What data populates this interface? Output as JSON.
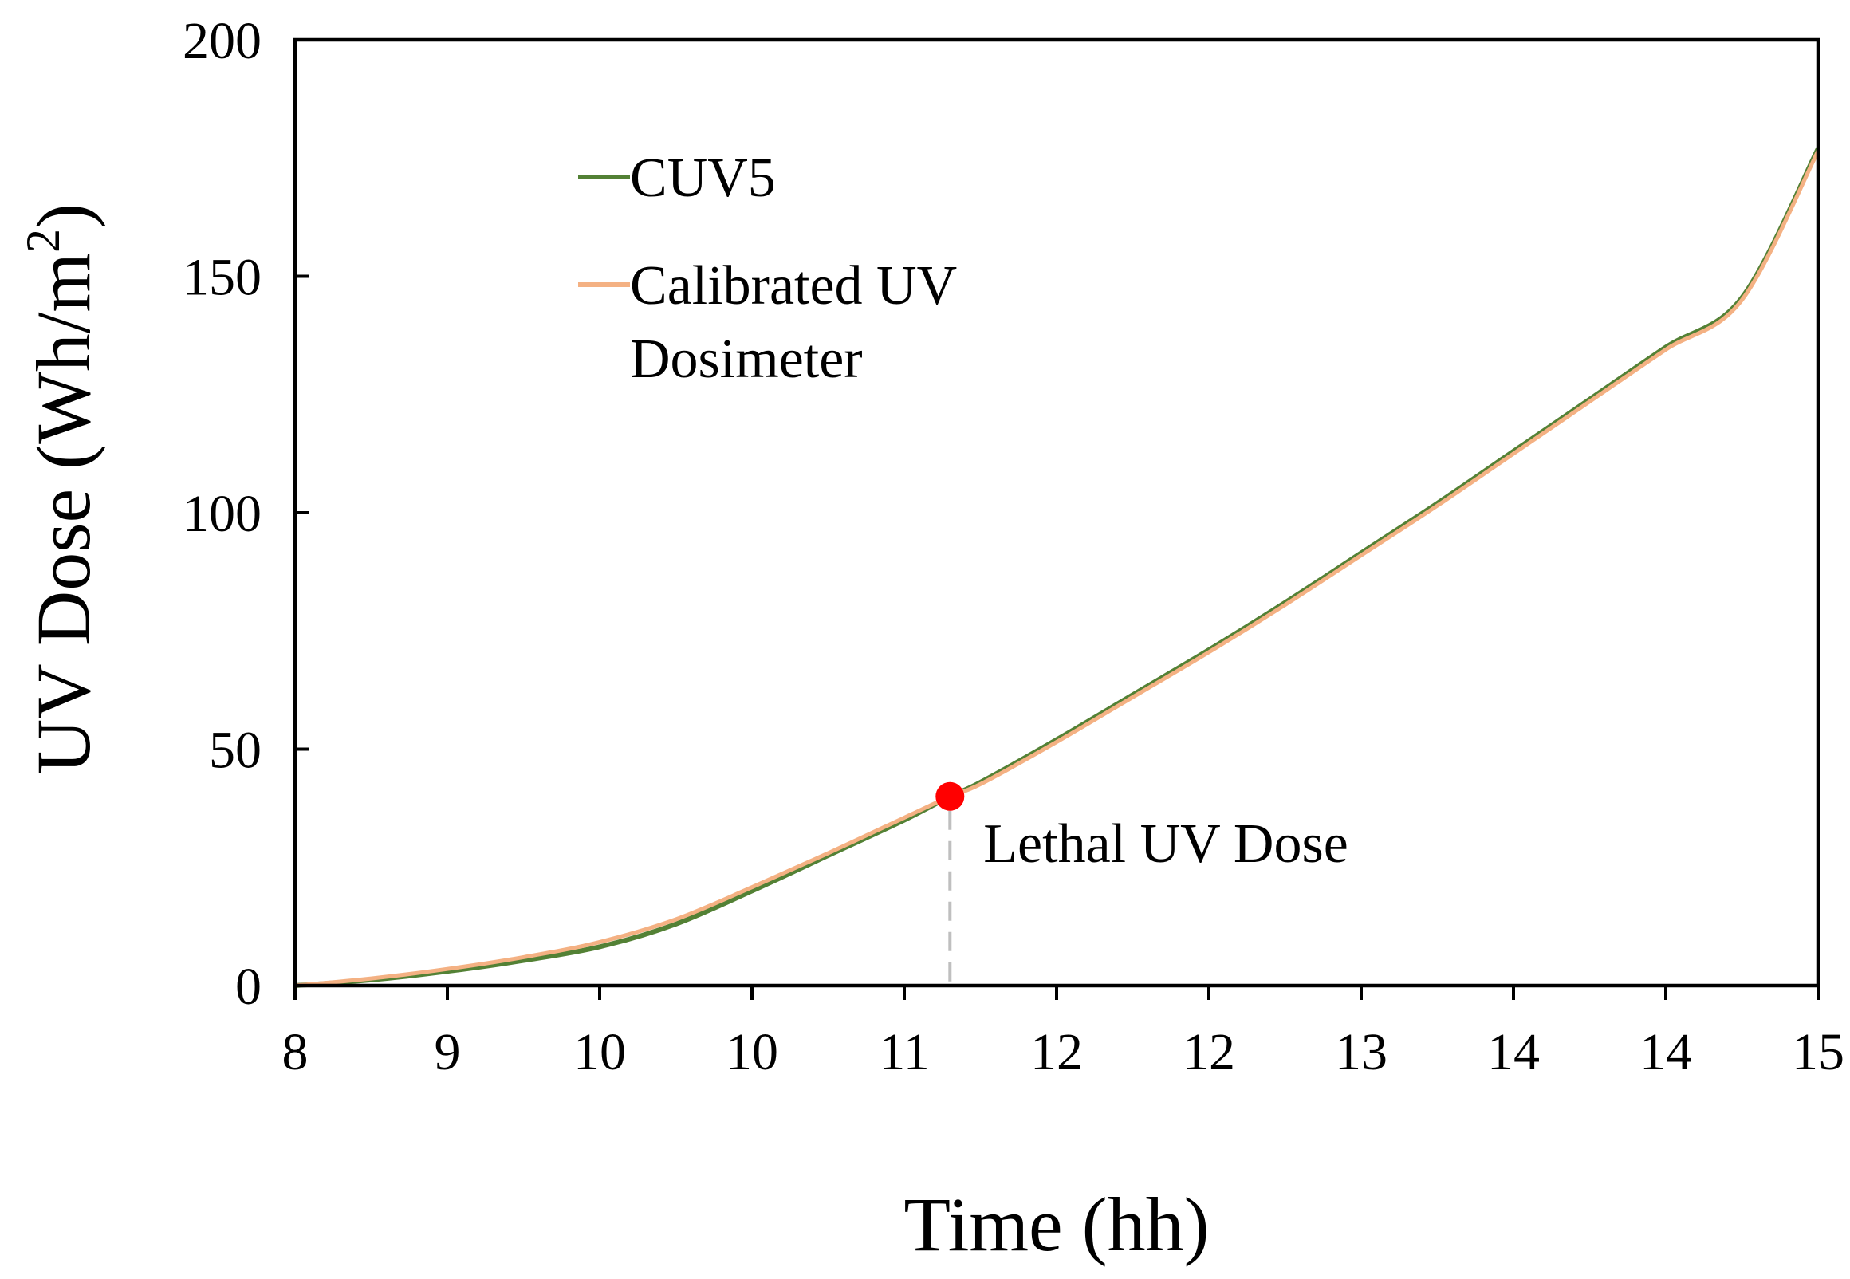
{
  "chart_data": {
    "type": "line",
    "title": "",
    "xlabel": "Time (hh)",
    "ylabel": "UV Dose (Wh/m",
    "ylabel_superscript": "2",
    "ylabel_close": ")",
    "xlim": [
      0,
      10
    ],
    "ylim": [
      0,
      200
    ],
    "x_ticks": [
      0,
      1,
      2,
      3,
      4,
      5,
      6,
      7,
      8,
      9,
      10
    ],
    "x_tick_labels": [
      "8",
      "9",
      "10",
      "10",
      "11",
      "12",
      "12",
      "13",
      "14",
      "14",
      "15"
    ],
    "y_ticks": [
      0,
      50,
      100,
      150,
      200
    ],
    "y_tick_labels": [
      "0",
      "50",
      "100",
      "150",
      "200"
    ],
    "grid": false,
    "legend_position": "top-left",
    "series": [
      {
        "name": "CUV5",
        "color": "#538135",
        "x": [
          0,
          0.5,
          1,
          1.5,
          2,
          2.5,
          3,
          3.5,
          4,
          4.3,
          4.5,
          5,
          5.5,
          6,
          6.5,
          7,
          7.5,
          8,
          8.5,
          9,
          9.5,
          10
        ],
        "y": [
          0,
          1.2,
          3,
          5.3,
          8.2,
          13,
          20,
          27.5,
          35,
          40,
          43,
          52,
          61.5,
          71,
          81,
          91.5,
          102,
          113,
          124,
          135,
          145.5,
          177
        ]
      },
      {
        "name": "Calibrated UV Dosimeter",
        "legend_lines": [
          "Calibrated UV",
          "Dosimeter"
        ],
        "color": "#F4B183",
        "x": [
          0,
          0.5,
          1,
          1.5,
          2,
          2.5,
          3,
          3.5,
          4,
          4.3,
          4.5,
          5,
          5.5,
          6,
          6.5,
          7,
          7.5,
          8,
          8.5,
          9,
          9.5,
          10
        ],
        "y": [
          0,
          1.5,
          3.5,
          6,
          9.2,
          14,
          20.8,
          28,
          35.5,
          40,
          42.6,
          51.5,
          61,
          70.5,
          80.5,
          91,
          101.5,
          112.5,
          123.5,
          134.5,
          145,
          176.5
        ]
      }
    ],
    "annotations": [
      {
        "label": "Lethal UV Dose",
        "x": 4.3,
        "y": 40,
        "marker_color": "#FF0000",
        "drop_line_color": "#BFBFBF"
      }
    ]
  }
}
